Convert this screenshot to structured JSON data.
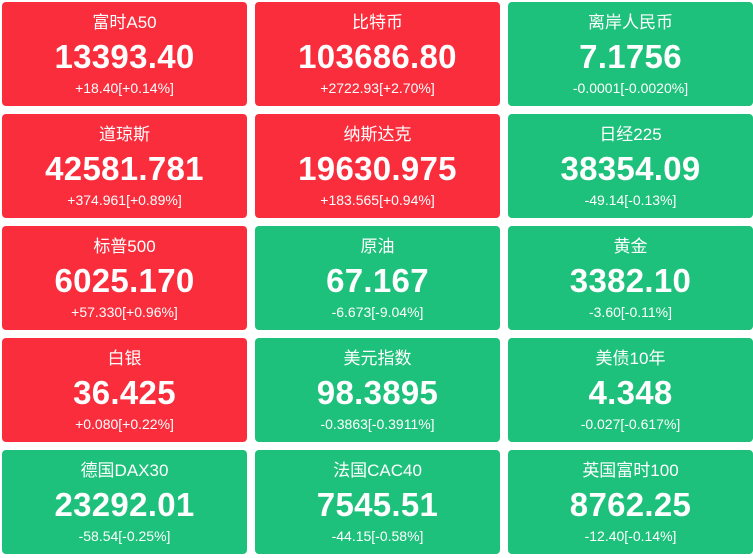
{
  "colors": {
    "up": "#fa2d3c",
    "down": "#1ec17b",
    "text": "#ffffff"
  },
  "tiles": [
    {
      "name": "富时A50",
      "price": "13393.40",
      "change": "+18.40[+0.14%]",
      "direction": "up"
    },
    {
      "name": "比特币",
      "price": "103686.80",
      "change": "+2722.93[+2.70%]",
      "direction": "up"
    },
    {
      "name": "离岸人民币",
      "price": "7.1756",
      "change": "-0.0001[-0.0020%]",
      "direction": "down"
    },
    {
      "name": "道琼斯",
      "price": "42581.781",
      "change": "+374.961[+0.89%]",
      "direction": "up"
    },
    {
      "name": "纳斯达克",
      "price": "19630.975",
      "change": "+183.565[+0.94%]",
      "direction": "up"
    },
    {
      "name": "日经225",
      "price": "38354.09",
      "change": "-49.14[-0.13%]",
      "direction": "down"
    },
    {
      "name": "标普500",
      "price": "6025.170",
      "change": "+57.330[+0.96%]",
      "direction": "up"
    },
    {
      "name": "原油",
      "price": "67.167",
      "change": "-6.673[-9.04%]",
      "direction": "down"
    },
    {
      "name": "黄金",
      "price": "3382.10",
      "change": "-3.60[-0.11%]",
      "direction": "down"
    },
    {
      "name": "白银",
      "price": "36.425",
      "change": "+0.080[+0.22%]",
      "direction": "up"
    },
    {
      "name": "美元指数",
      "price": "98.3895",
      "change": "-0.3863[-0.3911%]",
      "direction": "down"
    },
    {
      "name": "美债10年",
      "price": "4.348",
      "change": "-0.027[-0.617%]",
      "direction": "down"
    },
    {
      "name": "德国DAX30",
      "price": "23292.01",
      "change": "-58.54[-0.25%]",
      "direction": "down"
    },
    {
      "name": "法国CAC40",
      "price": "7545.51",
      "change": "-44.15[-0.58%]",
      "direction": "down"
    },
    {
      "name": "英国富时100",
      "price": "8762.25",
      "change": "-12.40[-0.14%]",
      "direction": "down"
    }
  ]
}
